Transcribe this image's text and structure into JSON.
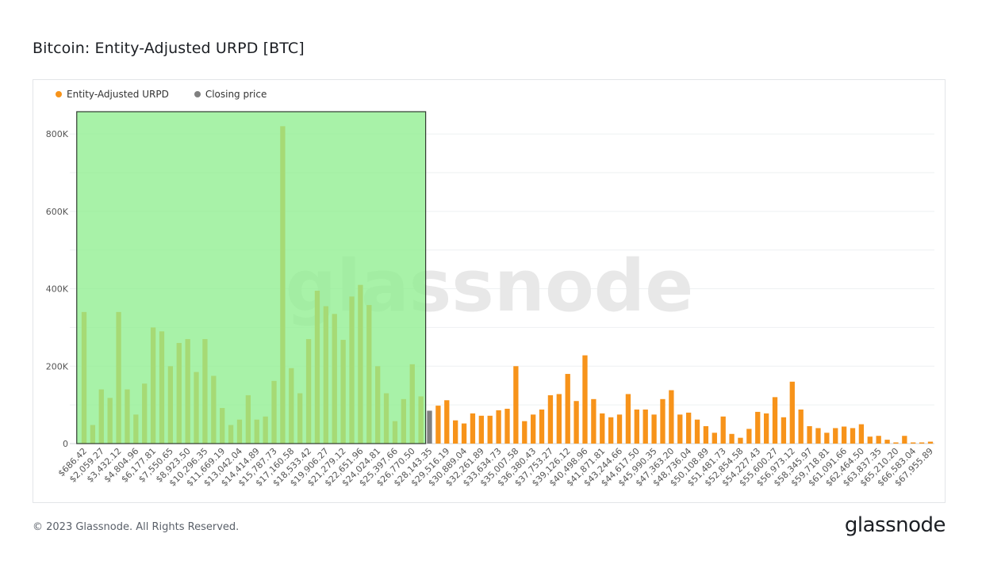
{
  "title": "Bitcoin: Entity-Adjusted URPD [BTC]",
  "legend": [
    {
      "label": "Entity-Adjusted URPD",
      "color": "#f7931a"
    },
    {
      "label": "Closing price",
      "color": "#808080"
    }
  ],
  "watermark": "glassnode",
  "footer": "© 2023 Glassnode. All Rights Reserved.",
  "logo": "glassnode",
  "colors": {
    "bar": "#f7931a",
    "closing": "#808080",
    "highlight_fill": "#90ee90",
    "highlight_stroke": "#2f3a2f"
  },
  "chart_data": {
    "type": "bar",
    "ylim": [
      0,
      880000
    ],
    "yticks": [
      {
        "value": 0,
        "label": "0"
      },
      {
        "value": 200000,
        "label": "200K"
      },
      {
        "value": 400000,
        "label": "400K"
      },
      {
        "value": 600000,
        "label": "600K"
      },
      {
        "value": 800000,
        "label": "800K"
      }
    ],
    "x_tick_labels": [
      "$686.42",
      "$2,059.27",
      "$3,432.12",
      "$4,804.96",
      "$6,177.81",
      "$7,550.65",
      "$8,923.50",
      "$10,296.35",
      "$11,669.19",
      "$13,042.04",
      "$14,414.89",
      "$15,787.73",
      "$17,160.58",
      "$18,533.42",
      "$19,906.27",
      "$21,279.12",
      "$22,651.96",
      "$24,024.81",
      "$25,397.66",
      "$26,770.50",
      "$28,143.35",
      "$29,516.19",
      "$30,889.04",
      "$32,261.89",
      "$33,634.73",
      "$35,007.58",
      "$36,380.43",
      "$37,753.27",
      "$39,126.12",
      "$40,498.96",
      "$41,871.81",
      "$43,244.66",
      "$44,617.50",
      "$45,990.35",
      "$47,363.20",
      "$48,736.04",
      "$50,108.89",
      "$51,481.73",
      "$52,854.58",
      "$54,227.43",
      "$55,600.27",
      "$56,973.12",
      "$58,345.97",
      "$59,718.81",
      "$61,091.66",
      "$62,464.50",
      "$63,837.35",
      "$65,210.20",
      "$66,583.04",
      "$67,955.89"
    ],
    "values": [
      340000,
      48000,
      140000,
      118000,
      340000,
      140000,
      75000,
      155000,
      300000,
      290000,
      200000,
      260000,
      270000,
      185000,
      270000,
      175000,
      92000,
      48000,
      62000,
      125000,
      62000,
      70000,
      162000,
      820000,
      195000,
      130000,
      270000,
      395000,
      355000,
      335000,
      268000,
      380000,
      410000,
      358000,
      200000,
      130000,
      58000,
      115000,
      205000,
      122000,
      85000,
      98000,
      112000,
      60000,
      52000,
      78000,
      72000,
      72000,
      86000,
      90000,
      200000,
      58000,
      75000,
      88000,
      125000,
      128000,
      180000,
      110000,
      228000,
      115000,
      78000,
      68000,
      75000,
      128000,
      88000,
      88000,
      75000,
      115000,
      138000,
      75000,
      80000,
      62000,
      45000,
      28000,
      70000,
      25000,
      15000,
      38000,
      82000,
      78000,
      120000,
      68000,
      160000,
      88000,
      45000,
      40000,
      28000,
      40000,
      44000,
      40000,
      50000,
      18000,
      20000,
      10000,
      3000,
      20000,
      3000,
      3000,
      5000
    ],
    "closing_price_index": 40,
    "highlight_range_index": [
      0,
      39
    ],
    "grid": true
  }
}
